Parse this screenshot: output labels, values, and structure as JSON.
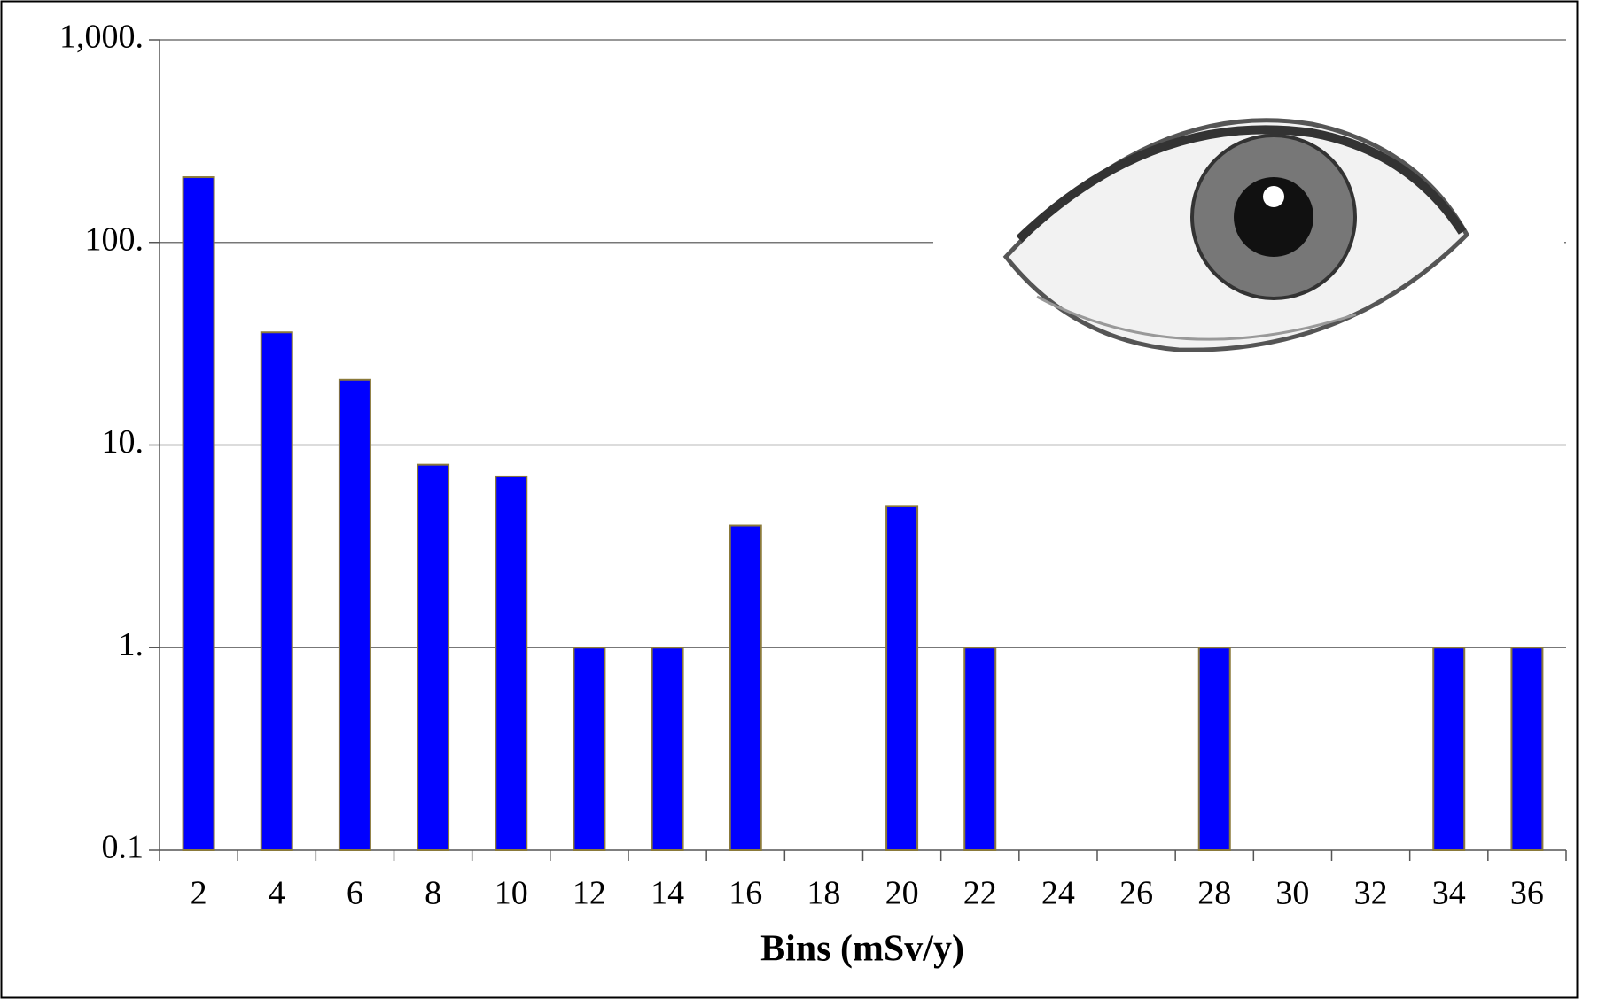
{
  "chart_data": {
    "type": "bar",
    "x_label": "Bins (mSv/y)",
    "categories": [
      "2",
      "4",
      "6",
      "8",
      "10",
      "12",
      "14",
      "16",
      "18",
      "20",
      "22",
      "24",
      "26",
      "28",
      "30",
      "32",
      "34",
      "36"
    ],
    "values": [
      210,
      36,
      21,
      8,
      7,
      1,
      1,
      4,
      null,
      5,
      1,
      null,
      null,
      1,
      null,
      null,
      1,
      1
    ],
    "color": "#0000ff",
    "log_scale": true,
    "grid": true,
    "ylim": [
      0.1,
      1000
    ],
    "yticks": [
      0.1,
      {
        "value": 1,
        "label": "1."
      },
      {
        "value": 10,
        "label": "10."
      },
      {
        "value": 100,
        "label": "100."
      },
      {
        "value": 1000,
        "label": "1,000."
      }
    ]
  }
}
